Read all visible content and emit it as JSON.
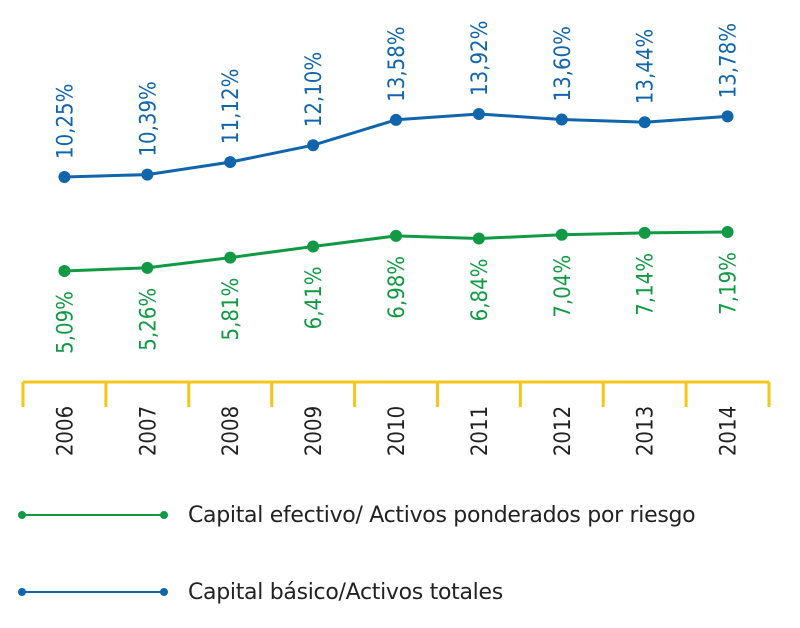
{
  "chart_data": {
    "type": "line",
    "categories": [
      "2006",
      "2007",
      "2008",
      "2009",
      "2010",
      "2011",
      "2012",
      "2013",
      "2014"
    ],
    "series": [
      {
        "name": "Capital básico/Activos totales",
        "color": "#1065ad",
        "values": [
          10.25,
          10.39,
          11.12,
          12.1,
          13.58,
          13.92,
          13.6,
          13.44,
          13.78
        ],
        "labels": [
          "10,25%",
          "10,39%",
          "11,12%",
          "12,10%",
          "13,58%",
          "13,92%",
          "13,60%",
          "13,44%",
          "13,78%"
        ]
      },
      {
        "name": "Capital efectivo/ Activos ponderados por riesgo",
        "color": "#119a44",
        "values": [
          5.09,
          5.26,
          5.81,
          6.41,
          6.98,
          6.84,
          7.04,
          7.14,
          7.19
        ],
        "labels": [
          "5,09%",
          "5,26%",
          "5,81%",
          "6,41%",
          "6,98%",
          "6,84%",
          "7,04%",
          "7,14%",
          "7,19%"
        ]
      }
    ],
    "axis_color": "#f5c518",
    "grid": false,
    "legend_position": "bottom"
  },
  "legend": {
    "items": [
      {
        "label": "Capital efectivo/ Activos ponderados por riesgo",
        "color": "#119a44"
      },
      {
        "label": "Capital básico/Activos totales",
        "color": "#1065ad"
      }
    ]
  }
}
